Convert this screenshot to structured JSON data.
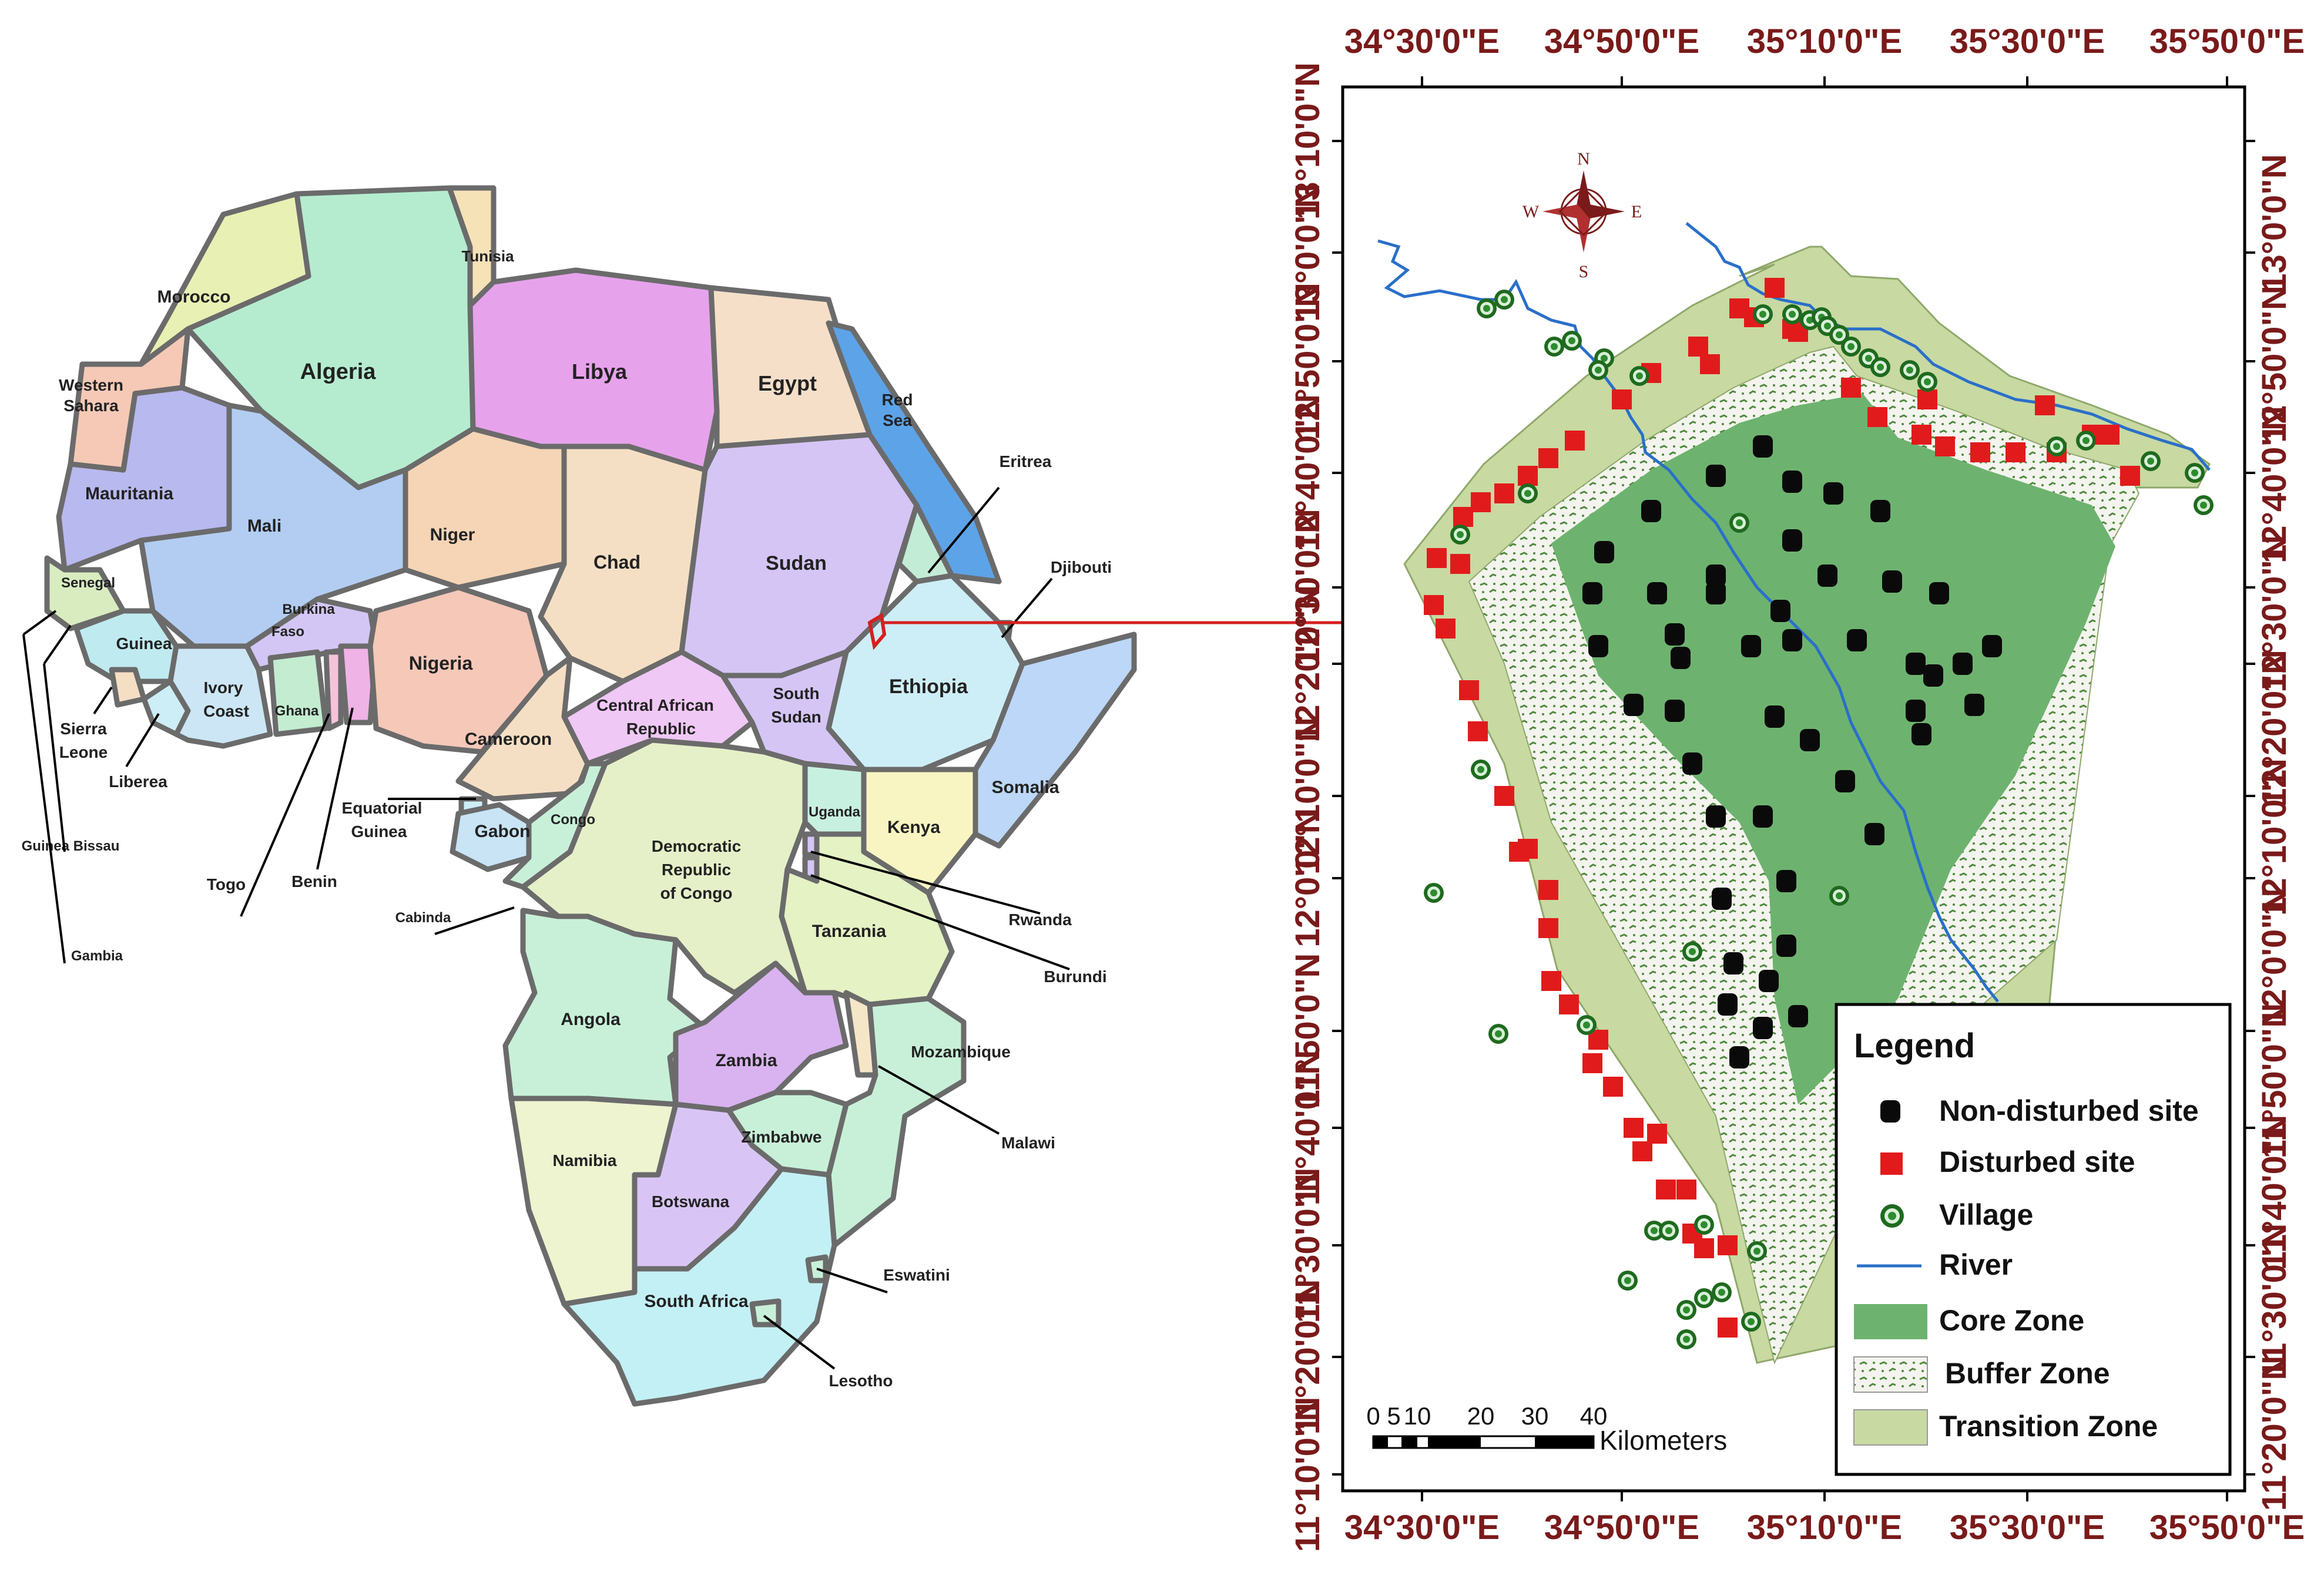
{
  "africa_map": {
    "countries": {
      "morocco": "Morocco",
      "algeria": "Algeria",
      "tunisia": "Tunisia",
      "libya": "Libya",
      "egypt": "Egypt",
      "western_sahara": "Western Sahara",
      "mauritania": "Mauritania",
      "mali": "Mali",
      "niger": "Niger",
      "chad": "Chad",
      "sudan": "Sudan",
      "red_sea": "Red Sea",
      "eritrea": "Eritrea",
      "djibouti": "Djibouti",
      "senegal": "Senegal",
      "guinea": "Guinea",
      "burkina_faso": "Burkina Faso",
      "nigeria": "Nigeria",
      "ethiopia": "Ethiopia",
      "ivory_coast": "Ivory Coast",
      "ghana": "Ghana",
      "central_african_republic": "Central African Republic",
      "south_sudan": "South Sudan",
      "sierra_leone": "Sierra Leone",
      "liberia": "Liberea",
      "cameroon": "Cameroon",
      "somalia": "Somalia",
      "equatorial_guinea": "Equatorial Guinea",
      "congo": "Congo",
      "uganda": "Uganda",
      "kenya": "Kenya",
      "gabon": "Gabon",
      "drc": "Democratic Republic of Congo",
      "guinea_bissau": "Guinea Bissau",
      "togo": "Togo",
      "benin": "Benin",
      "rwanda": "Rwanda",
      "cabinda": "Cabinda",
      "tanzania": "Tanzania",
      "burundi": "Burundi",
      "gambia": "Gambia",
      "angola": "Angola",
      "zambia": "Zambia",
      "mozambique": "Mozambique",
      "malawi": "Malawi",
      "zimbabwe": "Zimbabwe",
      "namibia": "Namibia",
      "botswana": "Botswana",
      "eswatini": "Eswatini",
      "south_africa": "South Africa",
      "lesotho": "Lesotho"
    }
  },
  "study_map": {
    "compass": {
      "n": "N",
      "s": "S",
      "e": "E",
      "w": "W"
    },
    "longitudes": [
      "34°30'0\"E",
      "34°50'0\"E",
      "35°10'0\"E",
      "35°30'0\"E",
      "35°50'0\"E"
    ],
    "latitudes_left": [
      "13°10'0\"N",
      "13°0'0\"N",
      "12°50'0\"N",
      "12°40'0\"N",
      "12°30'0\"N",
      "12°20'0\"N",
      "12°10'0\"N",
      "12°0'0\"N",
      "11°50'0\"N",
      "11°40'0\"N",
      "11°30'0\"N",
      "11°20'0\"N",
      "11°10'0\"N"
    ],
    "latitudes_right": [
      "13°0'0\"N",
      "12°50'0\"N",
      "12°40'0\"N",
      "12°30'0\"N",
      "12°20'0\"N",
      "12°10'0\"N",
      "12°0'0\"N",
      "11°50'0\"N",
      "11°40'0\"N",
      "11°30'0\"N",
      "11°20'0\"N"
    ],
    "scale_bar": {
      "ticks": [
        "0",
        "5",
        "10",
        "20",
        "30",
        "40"
      ],
      "unit": "Kilometers"
    },
    "legend": {
      "title": "Legend",
      "non_disturbed": "Non-disturbed site",
      "disturbed": "Disturbed site",
      "village": "Village",
      "river": "River",
      "core": "Core Zone",
      "buffer": "Buffer Zone",
      "transition": "Transition Zone"
    },
    "colors": {
      "core": "#6db36f",
      "buffer_bg": "#f4f4ee",
      "buffer_mark": "#4f8a3e",
      "transition": "#c8d9a2",
      "disturbed": "#e11b1b",
      "non_disturbed": "#0a0a0a",
      "village": "#2e8b2e",
      "river": "#2a6fc9",
      "coord_text": "#7a1a1a"
    }
  }
}
